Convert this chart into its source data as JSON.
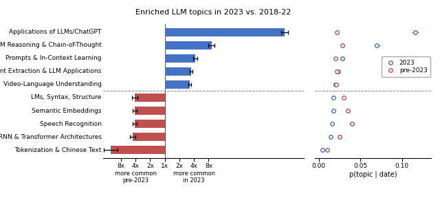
{
  "title": "Enriched LLM topics in 2023 vs. 2018-22",
  "categories": [
    "Applications of LLMs/ChatGPT",
    "LLM Reasoning & Chain-of-Thought",
    "Prompts & In-Context Learning",
    "Event Extraction & LLM Applications",
    "Video-Language Understanding",
    "LMs, Syntax, Structure",
    "Semantic Embeddings",
    "Speech Recognition",
    "RNN & Transformer Architectures",
    "Tokenization & Chinese Text"
  ],
  "bar_values": [
    8.2,
    3.2,
    2.1,
    1.8,
    1.7,
    -2.05,
    -2.05,
    -2.05,
    -2.2,
    -3.7
  ],
  "bar_errors_lo": [
    0.25,
    0.22,
    0.15,
    0.1,
    0.1,
    0.18,
    0.15,
    0.15,
    0.2,
    0.45
  ],
  "bar_errors_hi": [
    0.25,
    0.22,
    0.15,
    0.1,
    0.1,
    0.18,
    0.15,
    0.15,
    0.2,
    0.45
  ],
  "bar_color_pos": "#4472C4",
  "bar_color_neg": "#C0504D",
  "scatter_2023": [
    0.116,
    0.07,
    0.028,
    0.023,
    0.02,
    0.018,
    0.018,
    0.016,
    0.014,
    0.004
  ],
  "scatter_pre2023": [
    0.022,
    0.028,
    0.02,
    0.022,
    0.021,
    0.03,
    0.035,
    0.04,
    0.025,
    0.01
  ],
  "scatter_2023_err": [
    0.004,
    0.004,
    0.002,
    0.002,
    0.002,
    0.002,
    0.002,
    0.002,
    0.001,
    0.001
  ],
  "scatter_pre2023_err": [
    0.002,
    0.002,
    0.002,
    0.002,
    0.002,
    0.002,
    0.002,
    0.003,
    0.002,
    0.001
  ],
  "color_2023": "#4472C4",
  "color_pre2023": "#C0504D",
  "xtick_positions": [
    -3,
    -2,
    -1,
    0,
    1,
    2,
    3
  ],
  "xtick_labels": [
    "8x",
    "4x",
    "2x",
    "1x",
    "2x",
    "4x",
    "8x"
  ],
  "xlim": [
    -4.2,
    9.5
  ],
  "scatter_xlim": [
    -0.005,
    0.135
  ],
  "scatter_xticks": [
    0.0,
    0.05,
    0.1
  ],
  "scatter_xtick_labels": [
    "0.00",
    "0.05",
    "0.10"
  ],
  "dividing_row": 4.5,
  "xlabel_scatter": "p(topic | date)",
  "label_left": "more common\npre-2023",
  "label_right": "more common\nin 2023"
}
